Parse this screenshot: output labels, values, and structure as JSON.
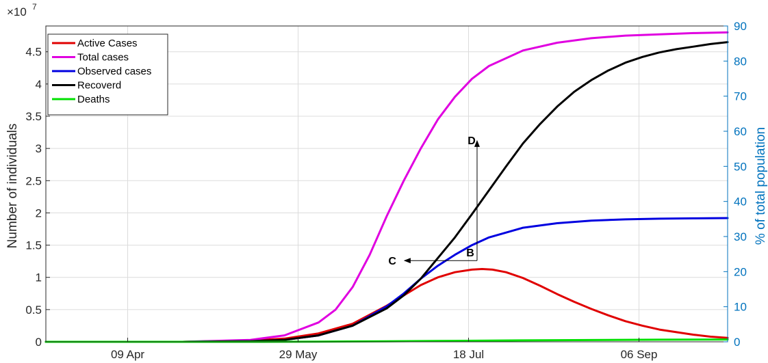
{
  "chart_data": {
    "type": "line",
    "ylabel": "Number of individuals",
    "y2label": "% of total population",
    "y_exponent_base": "×10",
    "y_exponent_power": "7",
    "x_tick_labels": [
      "09 Apr",
      "29 May",
      "18 Jul",
      "06 Sep"
    ],
    "x_tick_days": [
      24,
      74,
      124,
      174
    ],
    "xlim_days": [
      0,
      200
    ],
    "ylim": [
      0,
      4.9
    ],
    "y_ticks": [
      0,
      0.5,
      1,
      1.5,
      2,
      2.5,
      3,
      3.5,
      4,
      4.5
    ],
    "y_tick_labels": [
      "0",
      "0.5",
      "1",
      "1.5",
      "2",
      "2.5",
      "3",
      "3.5",
      "4",
      "4.5"
    ],
    "y2lim": [
      0,
      90
    ],
    "y2_ticks": [
      0,
      10,
      20,
      30,
      40,
      50,
      60,
      70,
      80,
      90
    ],
    "y2_tick_labels": [
      "0",
      "10",
      "20",
      "30",
      "40",
      "50",
      "60",
      "70",
      "80",
      "90"
    ],
    "grid": true,
    "legend_position": "top-left",
    "series": [
      {
        "name": "Active Cases",
        "color": "#e00000",
        "x": [
          0,
          40,
          60,
          70,
          80,
          90,
          100,
          105,
          110,
          115,
          120,
          125,
          128,
          131,
          135,
          140,
          145,
          150,
          155,
          160,
          165,
          170,
          175,
          180,
          185,
          190,
          195,
          200
        ],
        "y": [
          0,
          0,
          0.02,
          0.05,
          0.13,
          0.28,
          0.56,
          0.72,
          0.88,
          1.0,
          1.08,
          1.12,
          1.13,
          1.12,
          1.08,
          0.99,
          0.87,
          0.74,
          0.62,
          0.51,
          0.41,
          0.32,
          0.25,
          0.19,
          0.15,
          0.11,
          0.08,
          0.06
        ]
      },
      {
        "name": "Total cases",
        "color": "#e000e0",
        "x": [
          0,
          40,
          60,
          70,
          80,
          85,
          90,
          95,
          100,
          105,
          110,
          115,
          120,
          125,
          130,
          140,
          150,
          160,
          170,
          180,
          190,
          200
        ],
        "y": [
          0,
          0,
          0.03,
          0.1,
          0.3,
          0.5,
          0.85,
          1.35,
          1.95,
          2.5,
          3.0,
          3.45,
          3.8,
          4.08,
          4.28,
          4.52,
          4.64,
          4.71,
          4.75,
          4.77,
          4.79,
          4.8
        ]
      },
      {
        "name": "Observed cases",
        "color": "#0000e0",
        "x": [
          0,
          40,
          60,
          70,
          80,
          90,
          100,
          105,
          110,
          115,
          120,
          125,
          130,
          140,
          150,
          160,
          170,
          180,
          190,
          200
        ],
        "y": [
          0,
          0,
          0.01,
          0.03,
          0.1,
          0.25,
          0.55,
          0.75,
          0.98,
          1.18,
          1.35,
          1.5,
          1.62,
          1.77,
          1.84,
          1.88,
          1.9,
          1.91,
          1.915,
          1.92
        ]
      },
      {
        "name": "Recoverd",
        "color": "#000000",
        "x": [
          0,
          40,
          60,
          70,
          80,
          90,
          100,
          105,
          110,
          115,
          120,
          125,
          130,
          135,
          140,
          145,
          150,
          155,
          160,
          165,
          170,
          175,
          180,
          185,
          190,
          195,
          200
        ],
        "y": [
          0,
          0,
          0.01,
          0.03,
          0.1,
          0.25,
          0.52,
          0.72,
          0.98,
          1.3,
          1.62,
          1.98,
          2.35,
          2.72,
          3.08,
          3.38,
          3.65,
          3.88,
          4.06,
          4.21,
          4.33,
          4.42,
          4.49,
          4.54,
          4.58,
          4.62,
          4.65
        ]
      },
      {
        "name": "Deaths",
        "color": "#00e000",
        "x": [
          0,
          60,
          80,
          100,
          120,
          140,
          160,
          180,
          200
        ],
        "y": [
          0,
          0.0,
          0.003,
          0.008,
          0.015,
          0.022,
          0.028,
          0.033,
          0.036
        ]
      }
    ],
    "annotations": [
      {
        "label": "B",
        "x": 126.5,
        "y": 1.26
      },
      {
        "label": "C",
        "x": 104,
        "y": 1.26
      },
      {
        "label": "D",
        "x": 126.5,
        "y": 3.12
      }
    ]
  }
}
